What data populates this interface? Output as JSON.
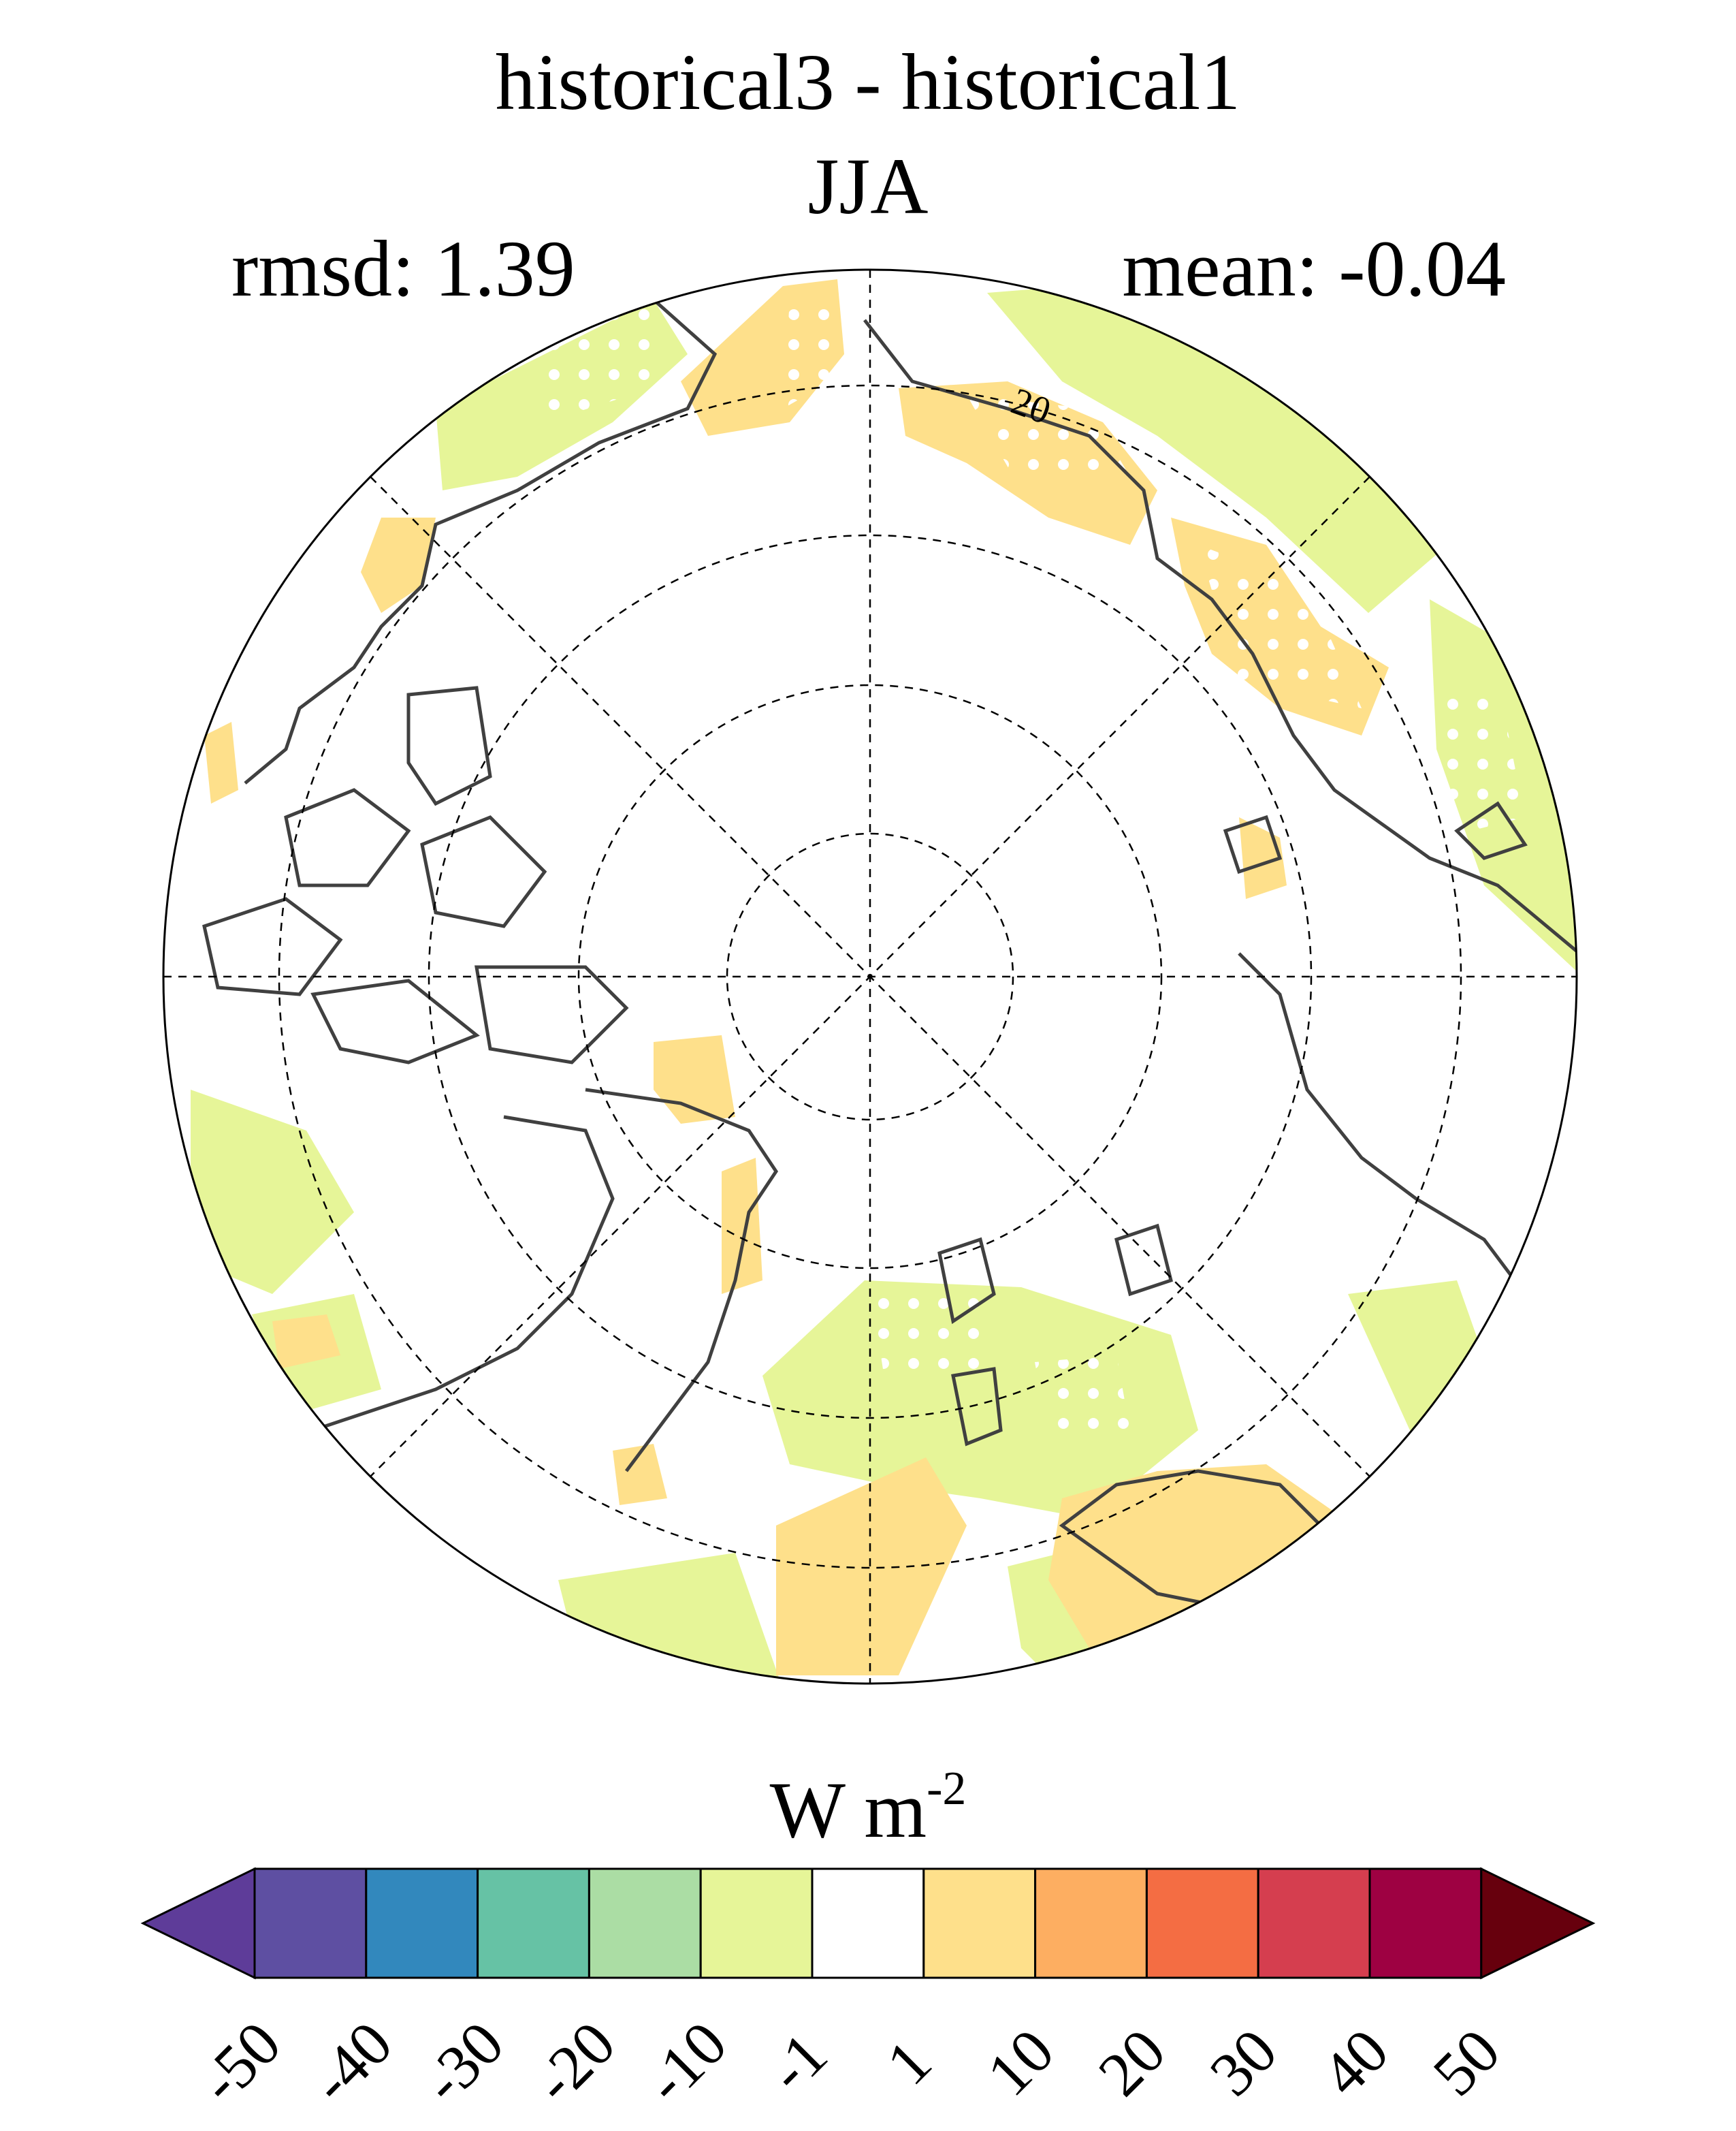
{
  "title": {
    "line1": "historical3 - historical1",
    "line2": "JJA"
  },
  "stats": {
    "rmsd": "rmsd: 1.39",
    "mean": "mean: -0.04"
  },
  "map": {
    "projection": "north-polar-stereographic",
    "contour_label": "20",
    "colors": {
      "positive_small": "#fee08b",
      "negative_small": "#e6f598",
      "coast": "#404040",
      "grid": "#000000"
    }
  },
  "colorbar": {
    "units_base": "W m",
    "units_exp": "-2",
    "ticks": [
      "-50",
      "-40",
      "-30",
      "-20",
      "-10",
      "-1",
      "1",
      "10",
      "20",
      "30",
      "40",
      "50"
    ],
    "left_extend_color": "#5e3c99",
    "right_extend_color": "#67000d",
    "colors": [
      "#5e4fa2",
      "#3288bd",
      "#66c2a5",
      "#abdda4",
      "#e6f598",
      "#ffffff",
      "#fee08b",
      "#fdae61",
      "#f46d43",
      "#d53e4f",
      "#9e0142"
    ]
  }
}
